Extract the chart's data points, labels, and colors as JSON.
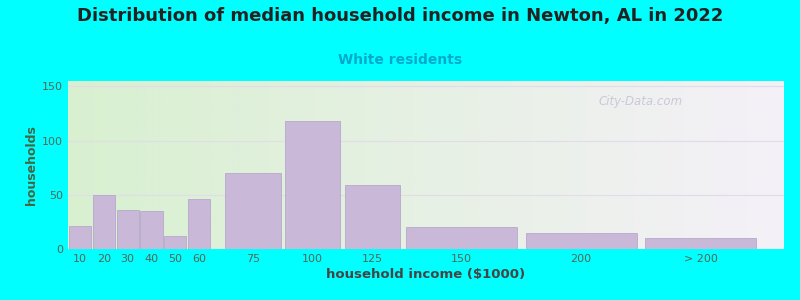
{
  "title": "Distribution of median household income in Newton, AL in 2022",
  "subtitle": "White residents",
  "xlabel": "household income ($1000)",
  "ylabel": "households",
  "background_outer": "#00FFFF",
  "background_inner_left": "#d8f0d0",
  "background_inner_right": "#f5f0f8",
  "bar_color": "#c9b8d8",
  "bar_edge_color": "#b0a0c8",
  "title_fontsize": 13,
  "subtitle_fontsize": 10,
  "subtitle_color": "#00aacc",
  "xlabel_fontsize": 9.5,
  "ylabel_fontsize": 9,
  "tick_labels": [
    "10",
    "20",
    "30",
    "40",
    "50",
    "60",
    "75",
    "100",
    "125",
    "150",
    "200",
    "> 200"
  ],
  "bar_values": [
    21,
    50,
    36,
    35,
    12,
    46,
    70,
    118,
    59,
    20,
    15,
    10
  ],
  "bar_widths": [
    10,
    10,
    10,
    10,
    10,
    10,
    25,
    25,
    25,
    50,
    50,
    50
  ],
  "bar_lefts": [
    10,
    20,
    30,
    40,
    50,
    60,
    75,
    100,
    125,
    150,
    200,
    250
  ],
  "ylim": [
    0,
    155
  ],
  "yticks": [
    0,
    50,
    100,
    150
  ],
  "watermark": "City-Data.com",
  "grid_color": "#e0dde8",
  "axis_tick_color": "#556655",
  "title_color": "#222222",
  "ylabel_color": "#446644",
  "xlabel_color": "#444444"
}
